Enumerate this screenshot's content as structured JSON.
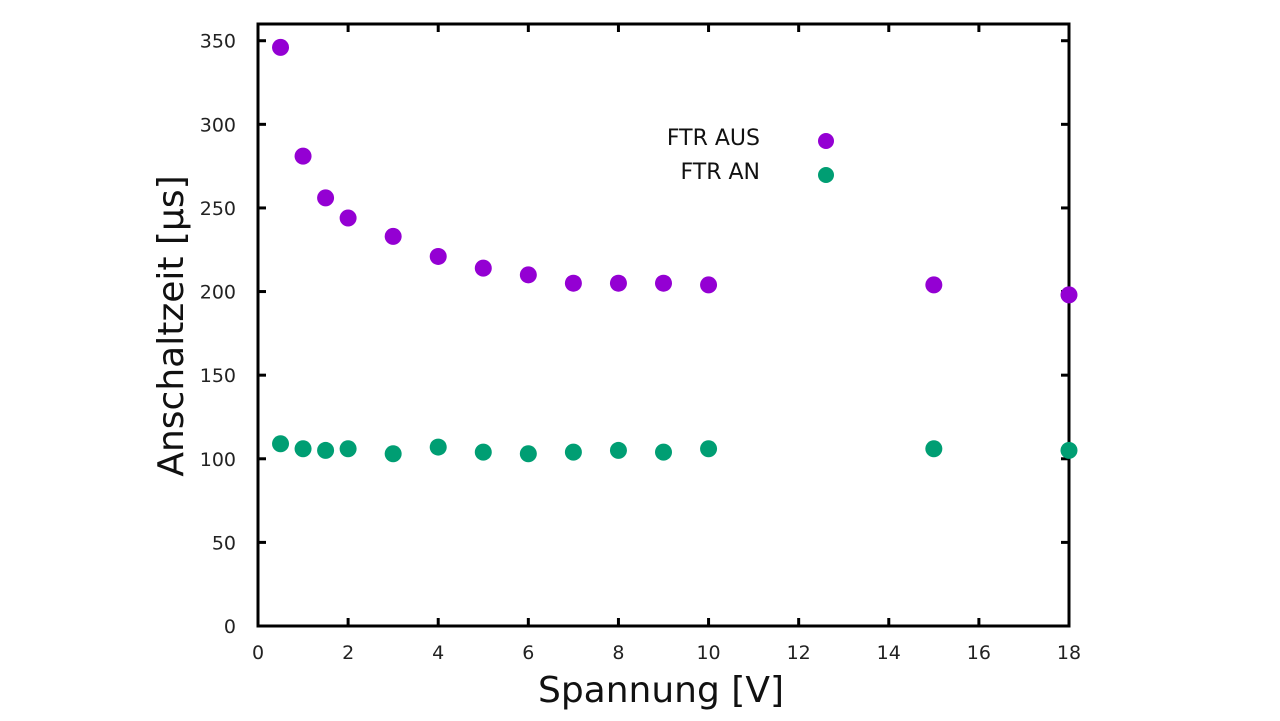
{
  "chart_data": {
    "type": "scatter",
    "title": "",
    "xlabel": "Spannung [V]",
    "ylabel": "Anschaltzeit [µs]",
    "xlim": [
      0,
      18
    ],
    "ylim": [
      0,
      360
    ],
    "xticks": [
      0,
      2,
      4,
      6,
      8,
      10,
      12,
      14,
      16,
      18
    ],
    "yticks": [
      0,
      50,
      100,
      150,
      200,
      250,
      300,
      350
    ],
    "grid": false,
    "legend_position": "top-right",
    "series": [
      {
        "name": "FTR AUS",
        "color": "#9400d3",
        "x": [
          0.5,
          1,
          1.5,
          2,
          3,
          4,
          5,
          6,
          7,
          8,
          9,
          10,
          15,
          18
        ],
        "y": [
          346,
          281,
          256,
          244,
          233,
          221,
          214,
          210,
          205,
          205,
          205,
          204,
          204,
          198
        ]
      },
      {
        "name": "FTR AN",
        "color": "#009e73",
        "x": [
          0.5,
          1,
          1.5,
          2,
          3,
          4,
          5,
          6,
          7,
          8,
          9,
          10,
          15,
          18
        ],
        "y": [
          109,
          106,
          105,
          106,
          103,
          107,
          104,
          103,
          104,
          105,
          104,
          106,
          106,
          105
        ]
      }
    ]
  }
}
